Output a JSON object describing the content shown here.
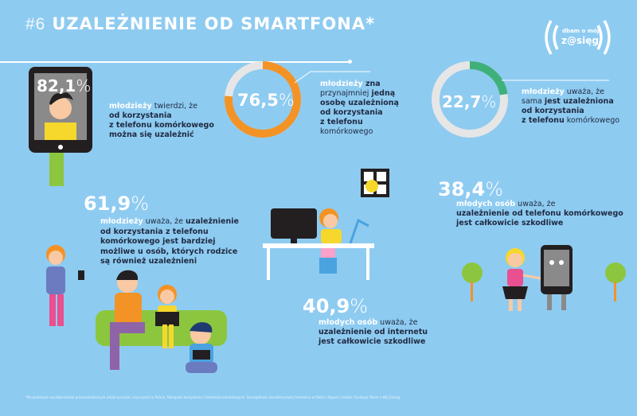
{
  "header": {
    "number": "#6",
    "title": "UZALEŻNIENIE OD SMARTFONA*"
  },
  "logo": {
    "line1": "dbam o mój",
    "line2": "z@sięg"
  },
  "colors": {
    "background": "#8ecbf1",
    "orange": "#f39325",
    "green": "#3fb07a",
    "track": "#e6e6e6",
    "dark": "#1f2940"
  },
  "stats": [
    {
      "value": "82,1",
      "unit": "%",
      "percent": 82.1,
      "lines": [
        [
          {
            "t": "młodzieży",
            "s": "w"
          },
          {
            "t": " twierdzi, że",
            "s": "n"
          }
        ],
        [
          {
            "t": "od korzystania",
            "s": "b"
          }
        ],
        [
          {
            "t": "z telefonu komórkowego",
            "s": "b"
          }
        ],
        [
          {
            "t": "można się uzależnić",
            "s": "b"
          }
        ]
      ]
    },
    {
      "value": "76,5",
      "unit": "%",
      "percent": 76.5,
      "lines": [
        [
          {
            "t": "młodzieży",
            "s": "w"
          },
          {
            "t": " zna",
            "s": "b"
          }
        ],
        [
          {
            "t": "przynajmniej ",
            "s": "n"
          },
          {
            "t": "jedną",
            "s": "b"
          }
        ],
        [
          {
            "t": "osobę uzależnioną",
            "s": "b"
          }
        ],
        [
          {
            "t": "od korzystania",
            "s": "b"
          }
        ],
        [
          {
            "t": "z telefonu",
            "s": "b"
          }
        ],
        [
          {
            "t": "komórkowego",
            "s": "n"
          }
        ]
      ]
    },
    {
      "value": "22,7",
      "unit": "%",
      "percent": 22.7,
      "lines": [
        [
          {
            "t": "młodzieży",
            "s": "w"
          },
          {
            "t": " uważa, że",
            "s": "n"
          }
        ],
        [
          {
            "t": "sama ",
            "s": "n"
          },
          {
            "t": "jest uzależniona",
            "s": "b"
          }
        ],
        [
          {
            "t": "od korzystania",
            "s": "b"
          }
        ],
        [
          {
            "t": "z telefonu",
            "s": "b"
          },
          {
            "t": " komórkowego",
            "s": "n"
          }
        ]
      ]
    },
    {
      "value": "61,9",
      "unit": "%",
      "percent": 61.9,
      "lines": [
        [
          {
            "t": "młodzieży",
            "s": "w"
          },
          {
            "t": " uważa, że ",
            "s": "n"
          },
          {
            "t": "uzależnienie",
            "s": "b"
          }
        ],
        [
          {
            "t": "od korzystania z telefonu",
            "s": "b"
          }
        ],
        [
          {
            "t": "komórkowego jest bardziej",
            "s": "b"
          }
        ],
        [
          {
            "t": "możliwe u osób, których rodzice",
            "s": "b"
          }
        ],
        [
          {
            "t": "są również uzależnieni",
            "s": "b"
          }
        ]
      ]
    },
    {
      "value": "38,4",
      "unit": "%",
      "percent": 38.4,
      "lines": [
        [
          {
            "t": "młodych osób",
            "s": "w"
          },
          {
            "t": " uważa, że",
            "s": "n"
          }
        ],
        [
          {
            "t": "uzależnienie od telefonu komórkowego",
            "s": "b"
          }
        ],
        [
          {
            "t": "jest całkowicie szkodliwe",
            "s": "b"
          }
        ]
      ]
    },
    {
      "value": "40,9",
      "unit": "%",
      "percent": 40.9,
      "lines": [
        [
          {
            "t": "młodych osób",
            "s": "w"
          },
          {
            "t": " uważa, że",
            "s": "n"
          }
        ],
        [
          {
            "t": "uzależnienie od internetu",
            "s": "b"
          }
        ],
        [
          {
            "t": "jest całkowicie szkodliwe",
            "s": "b"
          }
        ]
      ]
    }
  ],
  "footnote": "*Na podstawie wyników badań przeprowadzonych wśród uczniów i nauczycieli w Polsce. Nałogowe korzystanie z telefonów komórkowych. Szczegółowa charakterystyka fenomenu w Polsce. Raport z badań. Fundacja Dbam o Mój Zasięg."
}
